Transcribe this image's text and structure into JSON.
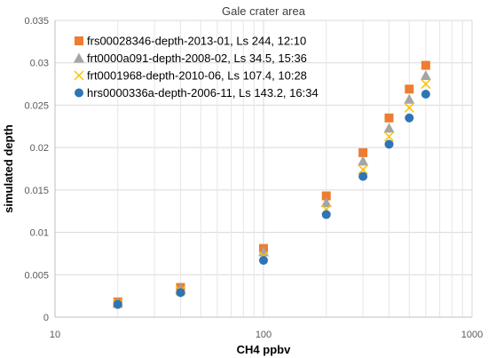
{
  "chart_data": {
    "type": "scatter",
    "title": "Gale crater area",
    "xlabel": "CH4 ppbv",
    "ylabel": "simulated depth",
    "xscale": "log",
    "xlim": [
      10,
      1000
    ],
    "ylim": [
      0,
      0.035
    ],
    "xticks": [
      10,
      100,
      1000
    ],
    "xtick_labels": [
      "10",
      "100",
      "1000"
    ],
    "yticks": [
      0,
      0.005,
      0.01,
      0.015,
      0.02,
      0.025,
      0.03,
      0.035
    ],
    "ytick_labels": [
      "0",
      "0.005",
      "0.01",
      "0.015",
      "0.02",
      "0.025",
      "0.03",
      "0.035"
    ],
    "grid": true,
    "legend_position": "top-left",
    "x": [
      20,
      40,
      100,
      200,
      300,
      400,
      500,
      600
    ],
    "series": [
      {
        "name": "frs00028346-depth-2013-01, Ls 244, 12:10",
        "marker": "square",
        "color": "#ED7D31",
        "values": [
          0.0018,
          0.0035,
          0.0081,
          0.0143,
          0.0194,
          0.0235,
          0.0269,
          0.0297
        ]
      },
      {
        "name": "frt0000a091-depth-2008-02, Ls 34.5, 15:36",
        "marker": "triangle",
        "color": "#A5A5A5",
        "values": [
          0.0017,
          0.0033,
          0.0077,
          0.0135,
          0.0184,
          0.0223,
          0.0257,
          0.0285
        ]
      },
      {
        "name": "frt0001968-depth-2010-06, Ls 107.4, 10:28",
        "marker": "x",
        "color": "#FFC000",
        "values": [
          0.0016,
          0.0031,
          0.0072,
          0.0127,
          0.0174,
          0.0213,
          0.0247,
          0.0275
        ]
      },
      {
        "name": "hrs0000336a-depth-2006-11, Ls 143.2, 16:34",
        "marker": "circle",
        "color": "#2E75B6",
        "values": [
          0.0015,
          0.0029,
          0.0067,
          0.0121,
          0.0166,
          0.0204,
          0.0235,
          0.0263
        ]
      }
    ]
  }
}
